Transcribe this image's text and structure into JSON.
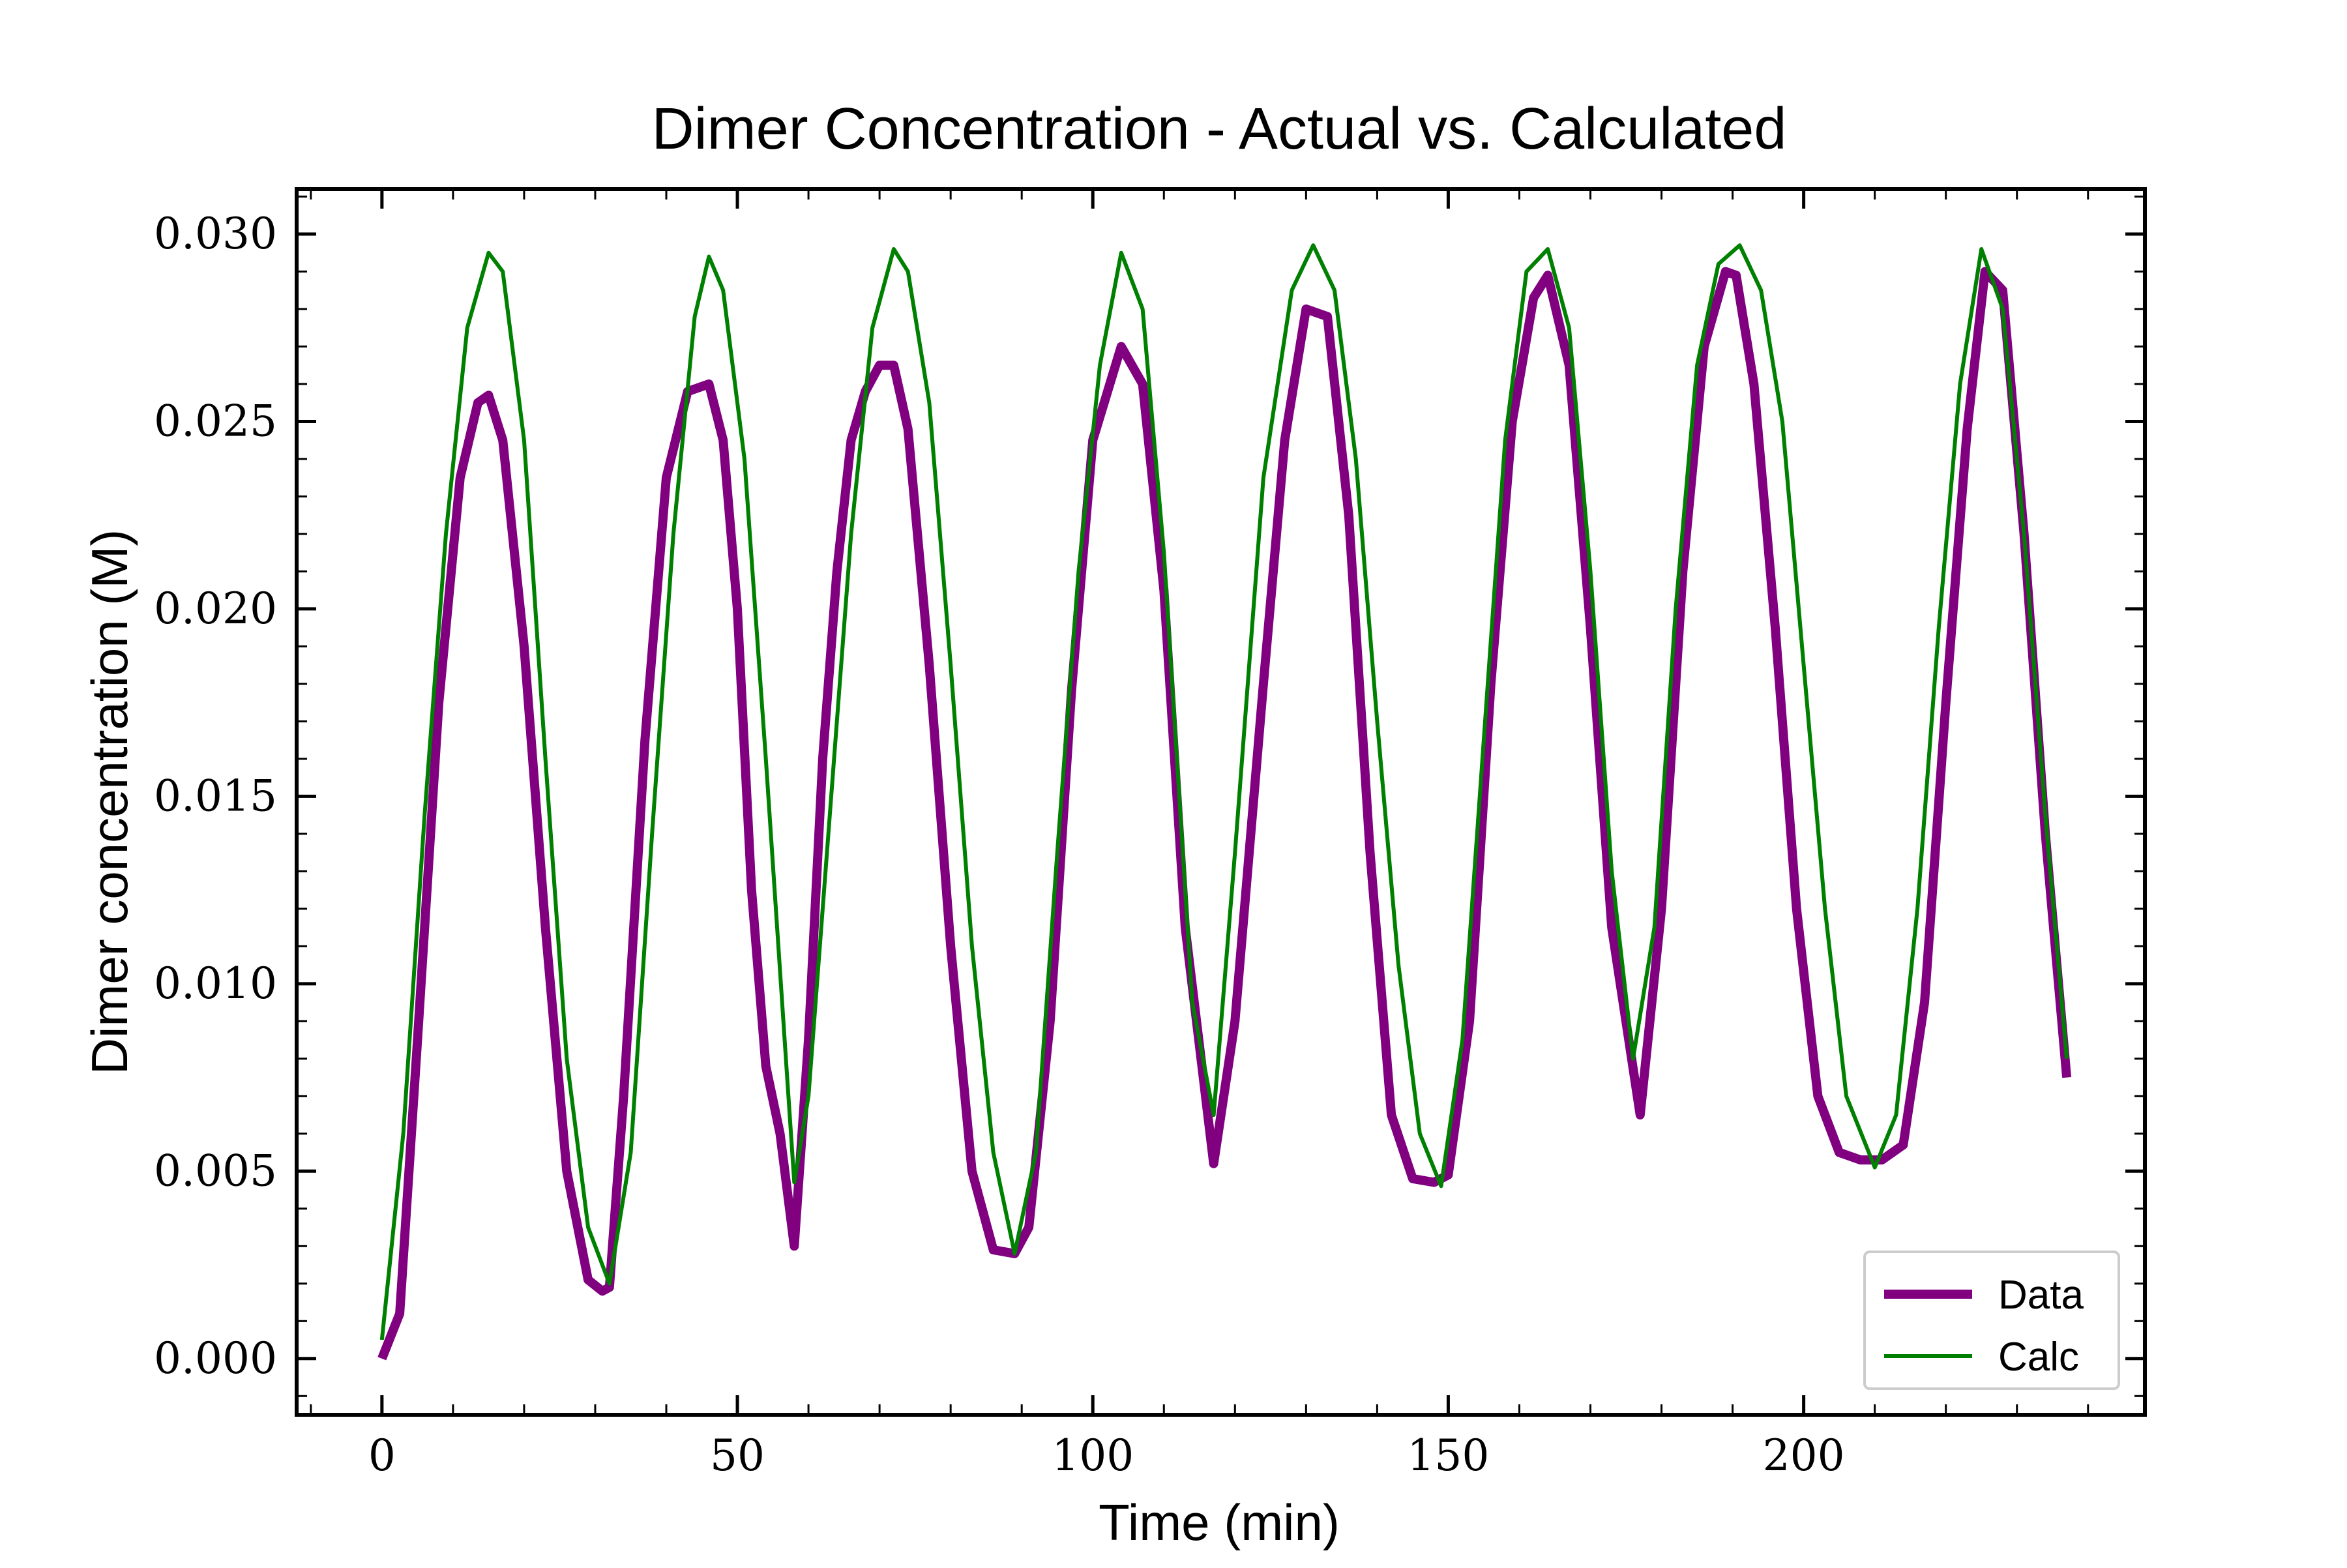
{
  "chart_data": {
    "type": "line",
    "title": "Dimer Concentration - Actual vs. Calculated",
    "xlabel": "Time (min)",
    "ylabel": "Dimer concentration (M)",
    "xlim": [
      -12,
      248
    ],
    "ylim": [
      -0.0015,
      0.0312
    ],
    "x_ticks": [
      0,
      50,
      100,
      150,
      200
    ],
    "x_tick_labels": [
      "0",
      "50",
      "100",
      "150",
      "200"
    ],
    "y_ticks": [
      0.0,
      0.005,
      0.01,
      0.015,
      0.02,
      0.025,
      0.03
    ],
    "y_tick_labels": [
      "0.000",
      "0.005",
      "0.010",
      "0.015",
      "0.020",
      "0.025",
      "0.030"
    ],
    "grid": false,
    "legend_position": "lower right",
    "series": [
      {
        "name": "Data",
        "color": "#800080",
        "x": [
          0,
          2.5,
          5,
          8,
          11,
          13.5,
          15,
          17,
          20,
          23,
          26,
          29,
          31,
          32,
          34,
          37,
          40,
          43,
          46,
          48,
          50,
          52,
          54,
          56,
          58,
          60,
          62,
          64,
          66,
          68,
          70,
          72,
          74,
          77,
          80,
          83,
          86,
          89,
          91,
          94,
          97,
          100,
          104,
          107,
          110,
          113,
          117,
          120,
          124,
          127,
          130,
          133,
          136,
          139,
          142,
          145,
          148,
          150,
          153,
          156,
          159,
          162,
          164,
          167,
          170,
          173,
          177,
          180,
          183,
          186,
          189,
          190.5,
          193,
          196,
          199,
          202,
          205,
          208,
          211,
          214,
          217,
          220,
          223,
          225.5,
          228,
          231,
          234,
          237
        ],
        "y": [
          0.0,
          0.0012,
          0.0085,
          0.0175,
          0.0235,
          0.0255,
          0.0257,
          0.0245,
          0.019,
          0.0115,
          0.005,
          0.0021,
          0.0018,
          0.0019,
          0.007,
          0.0165,
          0.0235,
          0.0258,
          0.026,
          0.0245,
          0.02,
          0.0125,
          0.0078,
          0.006,
          0.003,
          0.0085,
          0.016,
          0.021,
          0.0245,
          0.0258,
          0.0265,
          0.0265,
          0.0248,
          0.0185,
          0.011,
          0.005,
          0.0029,
          0.0028,
          0.0035,
          0.009,
          0.0178,
          0.0245,
          0.027,
          0.026,
          0.0205,
          0.0115,
          0.0052,
          0.009,
          0.018,
          0.0245,
          0.028,
          0.0278,
          0.0225,
          0.0135,
          0.0065,
          0.0048,
          0.0047,
          0.0049,
          0.009,
          0.018,
          0.025,
          0.0283,
          0.0289,
          0.0265,
          0.0195,
          0.0115,
          0.0065,
          0.012,
          0.021,
          0.027,
          0.029,
          0.0289,
          0.026,
          0.0195,
          0.012,
          0.007,
          0.0055,
          0.0053,
          0.0053,
          0.0057,
          0.0095,
          0.0175,
          0.0248,
          0.029,
          0.0285,
          0.022,
          0.014,
          0.0075
        ]
      },
      {
        "name": "Calc",
        "color": "#008000",
        "x": [
          0,
          3,
          6,
          9,
          12,
          15,
          17,
          20,
          23,
          26,
          29,
          32,
          35,
          38,
          41,
          44,
          46,
          48,
          51,
          54,
          57,
          58,
          60,
          63,
          66,
          69,
          72,
          74,
          77,
          80,
          83,
          86,
          89,
          92,
          95,
          98,
          101,
          104,
          107,
          110,
          114,
          117,
          120,
          124,
          128,
          131,
          134,
          137,
          140,
          143,
          146,
          149,
          152,
          155,
          158,
          161,
          164,
          167,
          170,
          173,
          176,
          179,
          182,
          185,
          188,
          191,
          194,
          197,
          200,
          203,
          206,
          210,
          213,
          216,
          219,
          222,
          225,
          228,
          231,
          234,
          237
        ],
        "y": [
          0.0005,
          0.006,
          0.0145,
          0.022,
          0.0275,
          0.0295,
          0.029,
          0.0245,
          0.016,
          0.008,
          0.0035,
          0.002,
          0.0055,
          0.014,
          0.022,
          0.0278,
          0.0294,
          0.0285,
          0.024,
          0.016,
          0.0075,
          0.0047,
          0.007,
          0.0145,
          0.022,
          0.0275,
          0.0296,
          0.029,
          0.0255,
          0.0185,
          0.011,
          0.0055,
          0.0028,
          0.0055,
          0.0135,
          0.021,
          0.0265,
          0.0295,
          0.028,
          0.0215,
          0.0095,
          0.0065,
          0.0135,
          0.0235,
          0.0285,
          0.0297,
          0.0285,
          0.024,
          0.017,
          0.0105,
          0.006,
          0.0046,
          0.0085,
          0.0165,
          0.0245,
          0.029,
          0.0296,
          0.0275,
          0.021,
          0.013,
          0.008,
          0.0115,
          0.02,
          0.0265,
          0.0292,
          0.0297,
          0.0285,
          0.025,
          0.0185,
          0.012,
          0.007,
          0.0051,
          0.0065,
          0.012,
          0.0195,
          0.026,
          0.0296,
          0.028,
          0.022,
          0.0145,
          0.008
        ]
      }
    ]
  }
}
